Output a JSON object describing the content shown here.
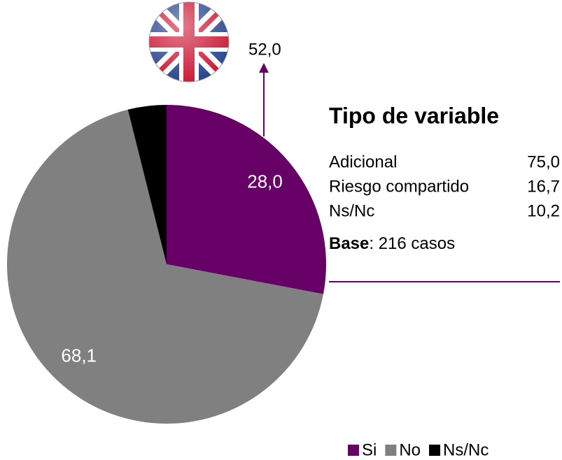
{
  "chart_data": {
    "type": "pie",
    "categories": [
      "Si",
      "No",
      "Ns/Nc"
    ],
    "values": [
      28.0,
      68.1,
      3.9
    ],
    "value_labels": [
      "28,0",
      "68,1",
      null
    ],
    "colors": [
      "#660066",
      "#808080",
      "#000000"
    ],
    "annotation": "52,0",
    "legend": "bottom-right"
  },
  "panel": {
    "title": "Tipo de variable",
    "rows": [
      [
        "Adicional",
        "75,0"
      ],
      [
        "Riesgo compartido",
        "16,7"
      ],
      [
        "Ns/Nc",
        "10,2"
      ]
    ],
    "base_label": "Base",
    "base_text": ": 216 casos"
  }
}
